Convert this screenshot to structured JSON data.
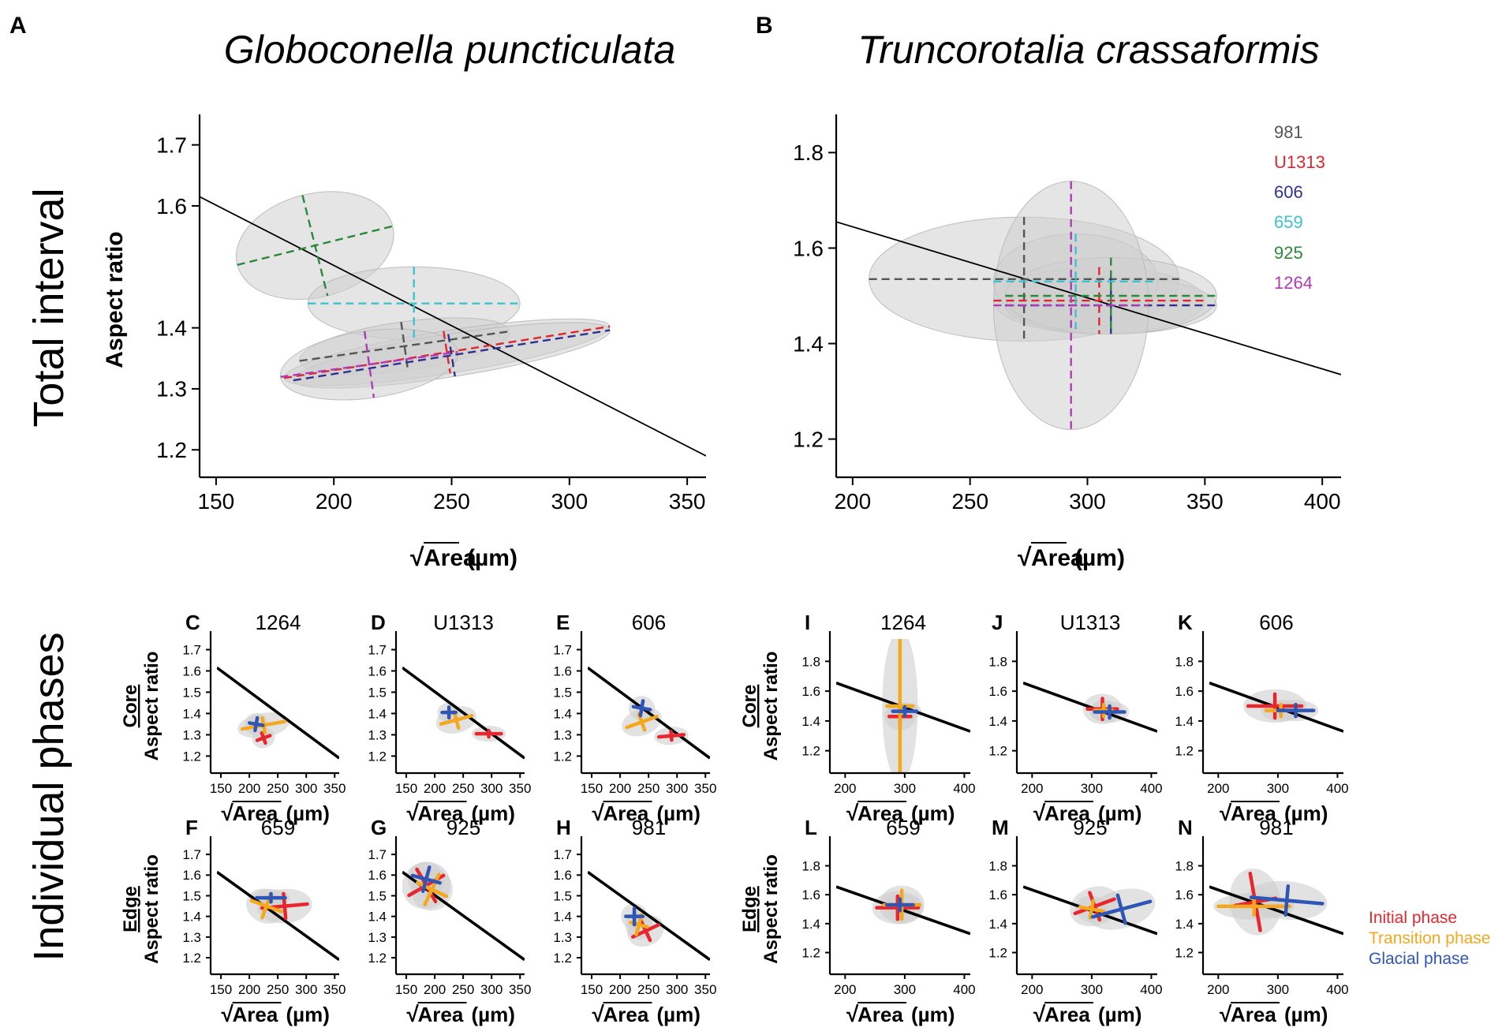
{
  "colors": {
    "981": "#555555",
    "U1313": "#e0262d",
    "606": "#2e3192",
    "659": "#3cc3d0",
    "925": "#2a8a3a",
    "1264": "#b03ab8",
    "ellipse": "#cfcfcf",
    "initial": "#e8262d",
    "transition": "#f4a81d",
    "glacial": "#2f55b5"
  },
  "labels": {
    "row_total": "Total interval",
    "row_phases": "Individual phases",
    "core": "Core",
    "edge": "Edge",
    "aspect_ratio": "Aspect ratio",
    "area_sqrt": "√",
    "area_word": "Area",
    "area_unit": "(µm)"
  },
  "legend_sites": [
    "981",
    "U1313",
    "606",
    "659",
    "925",
    "1264"
  ],
  "legend_phases": [
    "Initial phase",
    "Transition phase",
    "Glacial phase"
  ],
  "chart_data": [
    {
      "id": "A",
      "type": "scatter",
      "title": "Globoconella puncticulata",
      "xlabel": "√Area (µm)",
      "ylabel": "Aspect ratio",
      "xlim": [
        143,
        358
      ],
      "ylim": [
        1.155,
        1.75
      ],
      "xticks": [
        150,
        200,
        250,
        300,
        350
      ],
      "yticks": [
        1.2,
        1.3,
        1.4,
        1.6,
        1.7
      ],
      "regression": [
        [
          143,
          1.615
        ],
        [
          358,
          1.19
        ]
      ],
      "series": [
        {
          "name": "925",
          "cx": 192,
          "cy": 1.535,
          "sx": 34,
          "sy": 0.085,
          "angle": -14
        },
        {
          "name": "659",
          "cx": 234,
          "cy": 1.44,
          "sx": 45,
          "sy": 0.06,
          "angle": 0
        },
        {
          "name": "981",
          "cx": 230,
          "cy": 1.37,
          "sx": 45,
          "sy": 0.04,
          "angle": -8
        },
        {
          "name": "U1313",
          "cx": 248,
          "cy": 1.36,
          "sx": 70,
          "sy": 0.035,
          "angle": -9
        },
        {
          "name": "606",
          "cx": 250,
          "cy": 1.355,
          "sx": 68,
          "sy": 0.035,
          "angle": -9
        },
        {
          "name": "1264",
          "cx": 215,
          "cy": 1.34,
          "sx": 38,
          "sy": 0.055,
          "angle": -8
        }
      ]
    },
    {
      "id": "B",
      "type": "scatter",
      "title": "Truncorotalia crassaformis",
      "xlabel": "√Area (µm)",
      "ylabel": "Aspect ratio",
      "xlim": [
        193,
        408
      ],
      "ylim": [
        1.12,
        1.88
      ],
      "xticks": [
        200,
        250,
        300,
        350,
        400
      ],
      "yticks": [
        1.2,
        1.4,
        1.6,
        1.8
      ],
      "regression": [
        [
          193,
          1.655
        ],
        [
          408,
          1.335
        ]
      ],
      "series": [
        {
          "name": "981",
          "cx": 273,
          "cy": 1.535,
          "sx": 66,
          "sy": 0.13,
          "angle": 0
        },
        {
          "name": "U1313",
          "cx": 305,
          "cy": 1.49,
          "sx": 45,
          "sy": 0.07,
          "angle": 0
        },
        {
          "name": "606",
          "cx": 310,
          "cy": 1.48,
          "sx": 45,
          "sy": 0.06,
          "angle": 0
        },
        {
          "name": "659",
          "cx": 295,
          "cy": 1.53,
          "sx": 35,
          "sy": 0.1,
          "angle": 0
        },
        {
          "name": "925",
          "cx": 310,
          "cy": 1.5,
          "sx": 45,
          "sy": 0.08,
          "angle": 0
        },
        {
          "name": "1264",
          "cx": 293,
          "cy": 1.48,
          "sx": 33,
          "sy": 0.26,
          "angle": 0
        }
      ]
    },
    {
      "id": "C",
      "type": "scatter",
      "site": "1264",
      "species": "Globoconella puncticulata",
      "group": "Core",
      "xlim": [
        143,
        358
      ],
      "ylim": [
        1.12,
        1.75
      ],
      "xticks": [
        150,
        200,
        250,
        300,
        350
      ],
      "yticks": [
        1.2,
        1.3,
        1.4,
        1.5,
        1.6,
        1.7
      ],
      "regression": [
        [
          143,
          1.615
        ],
        [
          358,
          1.19
        ]
      ],
      "phases": [
        {
          "phase": "Initial phase",
          "cx": 225,
          "cy": 1.285,
          "sx": 12,
          "sy": 0.025,
          "angle": -20
        },
        {
          "phase": "Transition phase",
          "cx": 225,
          "cy": 1.345,
          "sx": 38,
          "sy": 0.035,
          "angle": -10
        },
        {
          "phase": "Glacial phase",
          "cx": 212,
          "cy": 1.35,
          "sx": 12,
          "sy": 0.03,
          "angle": 10
        }
      ]
    },
    {
      "id": "D",
      "type": "scatter",
      "site": "U1313",
      "species": "Globoconella puncticulata",
      "group": "Core",
      "xlim": [
        143,
        358
      ],
      "ylim": [
        1.12,
        1.75
      ],
      "xticks": [
        150,
        200,
        250,
        300,
        350
      ],
      "yticks": [
        1.2,
        1.3,
        1.4,
        1.5,
        1.6,
        1.7
      ],
      "regression": [
        [
          143,
          1.615
        ],
        [
          358,
          1.19
        ]
      ],
      "phases": [
        {
          "phase": "Initial phase",
          "cx": 295,
          "cy": 1.305,
          "sx": 22,
          "sy": 0.015,
          "angle": 0
        },
        {
          "phase": "Transition phase",
          "cx": 238,
          "cy": 1.37,
          "sx": 28,
          "sy": 0.04,
          "angle": -15
        },
        {
          "phase": "Glacial phase",
          "cx": 225,
          "cy": 1.405,
          "sx": 12,
          "sy": 0.025,
          "angle": 0
        }
      ]
    },
    {
      "id": "E",
      "type": "scatter",
      "site": "606",
      "species": "Globoconella puncticulata",
      "group": "Core",
      "xlim": [
        143,
        358
      ],
      "ylim": [
        1.12,
        1.75
      ],
      "xticks": [
        150,
        200,
        250,
        300,
        350
      ],
      "yticks": [
        1.2,
        1.3,
        1.4,
        1.5,
        1.6,
        1.7
      ],
      "regression": [
        [
          143,
          1.615
        ],
        [
          358,
          1.19
        ]
      ],
      "phases": [
        {
          "phase": "Initial phase",
          "cx": 290,
          "cy": 1.295,
          "sx": 22,
          "sy": 0.02,
          "angle": -5
        },
        {
          "phase": "Transition phase",
          "cx": 238,
          "cy": 1.36,
          "sx": 28,
          "sy": 0.04,
          "angle": -20
        },
        {
          "phase": "Glacial phase",
          "cx": 238,
          "cy": 1.425,
          "sx": 15,
          "sy": 0.035,
          "angle": 10
        }
      ]
    },
    {
      "id": "F",
      "type": "scatter",
      "site": "659",
      "species": "Globoconella puncticulata",
      "group": "Edge",
      "xlim": [
        143,
        358
      ],
      "ylim": [
        1.12,
        1.75
      ],
      "xticks": [
        150,
        200,
        250,
        300,
        350
      ],
      "yticks": [
        1.2,
        1.3,
        1.4,
        1.5,
        1.6,
        1.7
      ],
      "regression": [
        [
          143,
          1.615
        ],
        [
          358,
          1.19
        ]
      ],
      "phases": [
        {
          "phase": "Initial phase",
          "cx": 262,
          "cy": 1.45,
          "sx": 40,
          "sy": 0.06,
          "angle": -5
        },
        {
          "phase": "Transition phase",
          "cx": 230,
          "cy": 1.45,
          "sx": 28,
          "sy": 0.06,
          "angle": 20
        },
        {
          "phase": "Glacial phase",
          "cx": 238,
          "cy": 1.49,
          "sx": 25,
          "sy": 0.02,
          "angle": 0
        }
      ]
    },
    {
      "id": "G",
      "type": "scatter",
      "site": "925",
      "species": "Globoconella puncticulata",
      "group": "Edge",
      "xlim": [
        143,
        358
      ],
      "ylim": [
        1.12,
        1.75
      ],
      "xticks": [
        150,
        200,
        250,
        300,
        350
      ],
      "yticks": [
        1.2,
        1.3,
        1.4,
        1.5,
        1.6,
        1.7
      ],
      "regression": [
        [
          143,
          1.615
        ],
        [
          358,
          1.19
        ]
      ],
      "phases": [
        {
          "phase": "Initial phase",
          "cx": 185,
          "cy": 1.55,
          "sx": 35,
          "sy": 0.09,
          "angle": -30
        },
        {
          "phase": "Transition phase",
          "cx": 195,
          "cy": 1.53,
          "sx": 28,
          "sy": 0.08,
          "angle": 25
        },
        {
          "phase": "Glacial phase",
          "cx": 185,
          "cy": 1.58,
          "sx": 25,
          "sy": 0.06,
          "angle": 15
        }
      ]
    },
    {
      "id": "H",
      "type": "scatter",
      "site": "981",
      "species": "Globoconella puncticulata",
      "group": "Edge",
      "xlim": [
        143,
        358
      ],
      "ylim": [
        1.12,
        1.75
      ],
      "xticks": [
        150,
        200,
        250,
        300,
        350
      ],
      "yticks": [
        1.2,
        1.3,
        1.4,
        1.5,
        1.6,
        1.7
      ],
      "regression": [
        [
          143,
          1.615
        ],
        [
          358,
          1.19
        ]
      ],
      "phases": [
        {
          "phase": "Initial phase",
          "cx": 245,
          "cy": 1.33,
          "sx": 25,
          "sy": 0.05,
          "angle": -25
        },
        {
          "phase": "Transition phase",
          "cx": 233,
          "cy": 1.36,
          "sx": 15,
          "sy": 0.05,
          "angle": 15
        },
        {
          "phase": "Glacial phase",
          "cx": 225,
          "cy": 1.4,
          "sx": 15,
          "sy": 0.04,
          "angle": 0
        }
      ]
    },
    {
      "id": "I",
      "type": "scatter",
      "site": "1264",
      "species": "Truncorotalia crassaformis",
      "group": "Core",
      "xlim": [
        185,
        410
      ],
      "ylim": [
        1.05,
        1.95
      ],
      "xticks": [
        200,
        300,
        400
      ],
      "yticks": [
        1.2,
        1.4,
        1.6,
        1.8
      ],
      "regression": [
        [
          185,
          1.655
        ],
        [
          410,
          1.33
        ]
      ],
      "phases": [
        {
          "phase": "Initial phase",
          "cx": 292,
          "cy": 1.43,
          "sx": 18,
          "sy": 0.06,
          "angle": 0
        },
        {
          "phase": "Transition phase",
          "cx": 292,
          "cy": 1.5,
          "sx": 22,
          "sy": 0.48,
          "angle": 0
        },
        {
          "phase": "Glacial phase",
          "cx": 300,
          "cy": 1.465,
          "sx": 20,
          "sy": 0.03,
          "angle": 0
        }
      ]
    },
    {
      "id": "J",
      "type": "scatter",
      "site": "U1313",
      "species": "Truncorotalia crassaformis",
      "group": "Core",
      "xlim": [
        185,
        410
      ],
      "ylim": [
        1.05,
        1.95
      ],
      "xticks": [
        200,
        300,
        400
      ],
      "yticks": [
        1.2,
        1.4,
        1.6,
        1.8
      ],
      "regression": [
        [
          185,
          1.655
        ],
        [
          410,
          1.33
        ]
      ],
      "phases": [
        {
          "phase": "Initial phase",
          "cx": 318,
          "cy": 1.48,
          "sx": 25,
          "sy": 0.07,
          "angle": 0
        },
        {
          "phase": "Transition phase",
          "cx": 320,
          "cy": 1.47,
          "sx": 15,
          "sy": 0.04,
          "angle": 0
        },
        {
          "phase": "Glacial phase",
          "cx": 330,
          "cy": 1.46,
          "sx": 25,
          "sy": 0.04,
          "angle": 0
        }
      ]
    },
    {
      "id": "K",
      "type": "scatter",
      "site": "606",
      "species": "Truncorotalia crassaformis",
      "group": "Core",
      "xlim": [
        185,
        410
      ],
      "ylim": [
        1.05,
        1.95
      ],
      "xticks": [
        200,
        300,
        400
      ],
      "yticks": [
        1.2,
        1.4,
        1.6,
        1.8
      ],
      "regression": [
        [
          185,
          1.655
        ],
        [
          410,
          1.33
        ]
      ],
      "phases": [
        {
          "phase": "Initial phase",
          "cx": 295,
          "cy": 1.5,
          "sx": 45,
          "sy": 0.08,
          "angle": 0
        },
        {
          "phase": "Transition phase",
          "cx": 305,
          "cy": 1.47,
          "sx": 25,
          "sy": 0.04,
          "angle": 0
        },
        {
          "phase": "Glacial phase",
          "cx": 330,
          "cy": 1.47,
          "sx": 30,
          "sy": 0.04,
          "angle": 0
        }
      ]
    },
    {
      "id": "L",
      "type": "scatter",
      "site": "659",
      "species": "Truncorotalia crassaformis",
      "group": "Edge",
      "xlim": [
        185,
        410
      ],
      "ylim": [
        1.05,
        1.95
      ],
      "xticks": [
        200,
        300,
        400
      ],
      "yticks": [
        1.2,
        1.4,
        1.6,
        1.8
      ],
      "regression": [
        [
          185,
          1.655
        ],
        [
          410,
          1.33
        ]
      ],
      "phases": [
        {
          "phase": "Initial phase",
          "cx": 288,
          "cy": 1.51,
          "sx": 35,
          "sy": 0.08,
          "angle": 0
        },
        {
          "phase": "Transition phase",
          "cx": 295,
          "cy": 1.53,
          "sx": 30,
          "sy": 0.1,
          "angle": 0
        },
        {
          "phase": "Glacial phase",
          "cx": 292,
          "cy": 1.53,
          "sx": 22,
          "sy": 0.04,
          "angle": 0
        }
      ]
    },
    {
      "id": "M",
      "type": "scatter",
      "site": "925",
      "species": "Truncorotalia crassaformis",
      "group": "Edge",
      "xlim": [
        185,
        410
      ],
      "ylim": [
        1.05,
        1.95
      ],
      "xticks": [
        200,
        300,
        400
      ],
      "yticks": [
        1.2,
        1.4,
        1.6,
        1.8
      ],
      "regression": [
        [
          185,
          1.655
        ],
        [
          410,
          1.33
        ]
      ],
      "phases": [
        {
          "phase": "Initial phase",
          "cx": 305,
          "cy": 1.52,
          "sx": 35,
          "sy": 0.1,
          "angle": -20
        },
        {
          "phase": "Transition phase",
          "cx": 300,
          "cy": 1.5,
          "sx": 20,
          "sy": 0.06,
          "angle": 10
        },
        {
          "phase": "Glacial phase",
          "cx": 350,
          "cy": 1.5,
          "sx": 50,
          "sy": 0.1,
          "angle": -15
        }
      ]
    },
    {
      "id": "N",
      "type": "scatter",
      "site": "981",
      "species": "Truncorotalia crassaformis",
      "group": "Edge",
      "xlim": [
        185,
        410
      ],
      "ylim": [
        1.05,
        1.95
      ],
      "xticks": [
        200,
        300,
        400
      ],
      "yticks": [
        1.2,
        1.4,
        1.6,
        1.8
      ],
      "regression": [
        [
          185,
          1.655
        ],
        [
          410,
          1.33
        ]
      ],
      "phases": [
        {
          "phase": "Initial phase",
          "cx": 262,
          "cy": 1.55,
          "sx": 35,
          "sy": 0.2,
          "angle": -10
        },
        {
          "phase": "Transition phase",
          "cx": 260,
          "cy": 1.52,
          "sx": 60,
          "sy": 0.06,
          "angle": 0
        },
        {
          "phase": "Glacial phase",
          "cx": 315,
          "cy": 1.56,
          "sx": 60,
          "sy": 0.1,
          "angle": 5
        }
      ]
    }
  ]
}
